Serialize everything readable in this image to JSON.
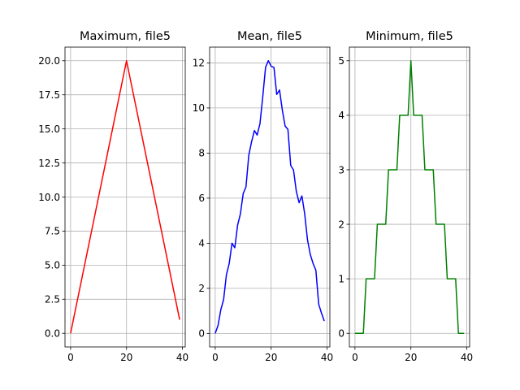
{
  "chart_data": [
    {
      "type": "line",
      "title": "Maximum, file5",
      "xlabel": "",
      "ylabel": "",
      "xlim": [
        -2,
        41
      ],
      "ylim": [
        -1,
        21
      ],
      "grid": true,
      "color": "#ff0000",
      "xticks": [
        0,
        20,
        40
      ],
      "yticks": [
        0.0,
        2.5,
        5.0,
        7.5,
        10.0,
        12.5,
        15.0,
        17.5,
        20.0
      ],
      "ytick_labels": [
        "0.0",
        "2.5",
        "5.0",
        "7.5",
        "10.0",
        "12.5",
        "15.0",
        "17.5",
        "20.0"
      ],
      "x": [
        0,
        20,
        39
      ],
      "y": [
        0,
        20,
        1
      ]
    },
    {
      "type": "line",
      "title": "Mean, file5",
      "xlabel": "",
      "ylabel": "",
      "xlim": [
        -2,
        41
      ],
      "ylim": [
        -0.6,
        12.7
      ],
      "grid": true,
      "color": "#0000ff",
      "xticks": [
        0,
        20,
        40
      ],
      "yticks": [
        0,
        2,
        4,
        6,
        8,
        10,
        12
      ],
      "ytick_labels": [
        "0",
        "2",
        "4",
        "6",
        "8",
        "10",
        "12"
      ],
      "x": [
        0,
        1,
        2,
        3,
        4,
        5,
        6,
        7,
        8,
        9,
        10,
        11,
        12,
        13,
        14,
        15,
        16,
        17,
        18,
        19,
        20,
        21,
        22,
        23,
        24,
        25,
        26,
        27,
        28,
        29,
        30,
        31,
        32,
        33,
        34,
        35,
        36,
        37,
        38,
        39
      ],
      "y": [
        0.0,
        0.35,
        1.05,
        1.5,
        2.6,
        3.1,
        4.0,
        3.8,
        4.8,
        5.3,
        6.2,
        6.5,
        7.9,
        8.5,
        9.0,
        8.8,
        9.3,
        10.5,
        11.8,
        12.1,
        11.85,
        11.8,
        10.6,
        10.8,
        9.9,
        9.2,
        9.05,
        7.45,
        7.25,
        6.3,
        5.8,
        6.1,
        5.3,
        4.15,
        3.5,
        3.1,
        2.8,
        1.3,
        0.9,
        0.55
      ]
    },
    {
      "type": "line",
      "title": "Minimum, file5",
      "xlabel": "",
      "ylabel": "",
      "xlim": [
        -2,
        41
      ],
      "ylim": [
        -0.25,
        5.25
      ],
      "grid": true,
      "color": "#008000",
      "xticks": [
        0,
        20,
        40
      ],
      "yticks": [
        0,
        1,
        2,
        3,
        4,
        5
      ],
      "ytick_labels": [
        "0",
        "1",
        "2",
        "3",
        "4",
        "5"
      ],
      "x": [
        0,
        1,
        2,
        3,
        4,
        5,
        6,
        7,
        8,
        9,
        10,
        11,
        12,
        13,
        14,
        15,
        16,
        17,
        18,
        19,
        20,
        21,
        22,
        23,
        24,
        25,
        26,
        27,
        28,
        29,
        30,
        31,
        32,
        33,
        34,
        35,
        36,
        37,
        38,
        39
      ],
      "y": [
        0,
        0,
        0,
        0,
        1,
        1,
        1,
        1,
        2,
        2,
        2,
        2,
        3,
        3,
        3,
        3,
        4,
        4,
        4,
        4,
        5,
        4,
        4,
        4,
        4,
        3,
        3,
        3,
        3,
        2,
        2,
        2,
        2,
        1,
        1,
        1,
        1,
        0,
        0,
        0
      ]
    }
  ]
}
